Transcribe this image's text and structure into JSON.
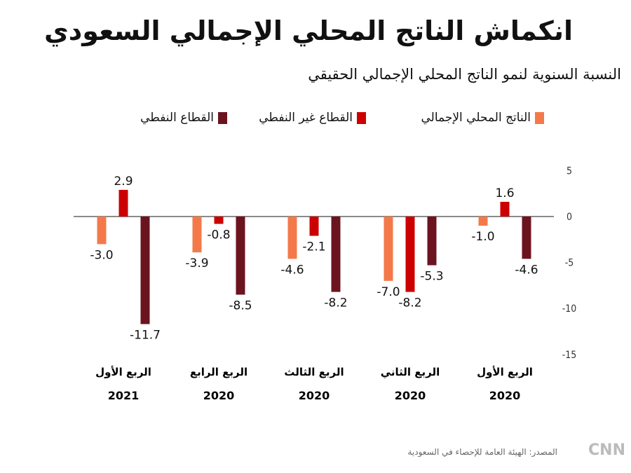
{
  "title": "انكماش الناتج المحلي الإجمالي السعودي",
  "subtitle": "النسبة السنوية لنمو الناتج المحلي الإجمالي الحقيقي",
  "source": "المصدر: الهيئة العامة للإحصاء في السعودية",
  "logo": "CNN بالعربية",
  "chart_data": {
    "type": "bar",
    "categories": [
      [
        "الربع الأول",
        "2020"
      ],
      [
        "الربع الثاني",
        "2020"
      ],
      [
        "الربع الثالث",
        "2020"
      ],
      [
        "الربع الرابع",
        "2020"
      ],
      [
        "الربع الأول",
        "2021"
      ]
    ],
    "series": [
      {
        "name": "الناتج المحلي الإجمالي",
        "color": "#f4794a",
        "values": [
          -1.0,
          -7.0,
          -4.6,
          -3.9,
          -3.0
        ]
      },
      {
        "name": "القطاع غير النفطي",
        "color": "#cc0000",
        "values": [
          1.6,
          -8.2,
          -2.1,
          -0.8,
          2.9
        ]
      },
      {
        "name": "القطاع النفطي",
        "color": "#6b1420",
        "values": [
          -4.6,
          -5.3,
          -8.2,
          -8.5,
          -11.7
        ]
      }
    ],
    "yticks": [
      5,
      0,
      -5,
      -10,
      -15
    ],
    "ylim": [
      -15,
      5
    ],
    "legend": "top",
    "direction": "rtl"
  }
}
